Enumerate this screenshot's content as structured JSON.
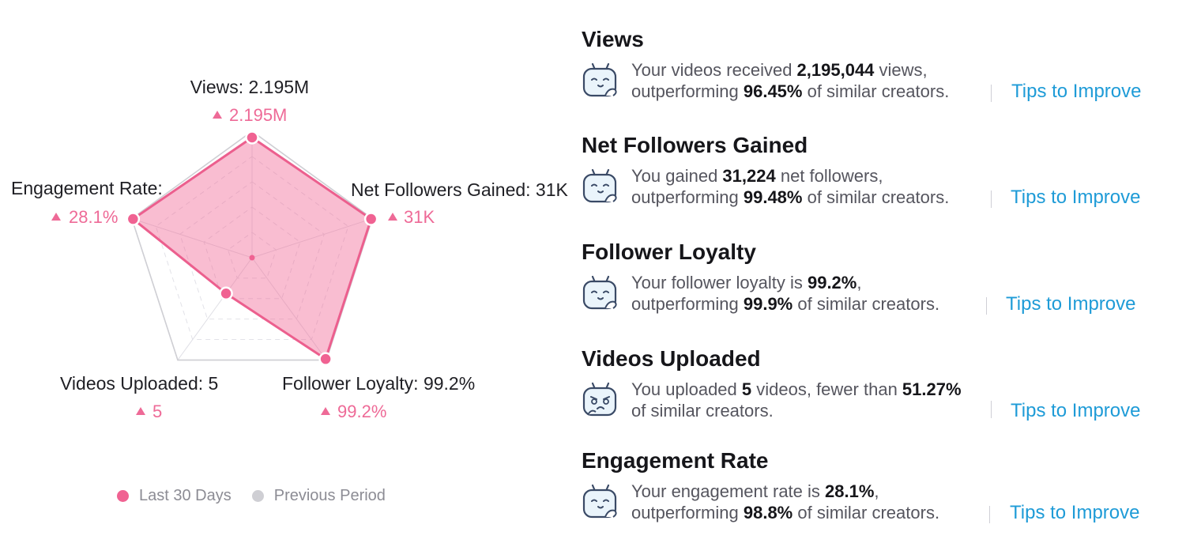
{
  "chart_data": {
    "type": "radar",
    "axes": [
      {
        "label": "Views: 2.195M",
        "delta": "2.195M",
        "value": 0.95
      },
      {
        "label": "Net Followers Gained: 31K",
        "delta": "31K",
        "value": 0.99
      },
      {
        "label": "Follower Loyalty: 99.2%",
        "delta": "99.2%",
        "value": 0.99
      },
      {
        "label": "Videos Uploaded: 5",
        "delta": "5",
        "value": 0.35
      },
      {
        "label": "Engagement Rate:",
        "delta": "28.1%",
        "value": 0.99
      }
    ],
    "series": [
      {
        "name": "Last 30 Days",
        "color": "#f06292"
      },
      {
        "name": "Previous Period",
        "color": "#cfcfd4"
      }
    ]
  },
  "legend": {
    "current": "Last 30 Days",
    "previous": "Previous Period"
  },
  "metrics": [
    {
      "title": "Views",
      "line1_pre": "Your videos received ",
      "line1_bold": "2,195,044",
      "line1_post": " views,",
      "line2_pre": "outperforming ",
      "line2_bold": "96.45%",
      "line2_post": " of similar creators.",
      "tips": "Tips to Improve"
    },
    {
      "title": "Net Followers Gained",
      "line1_pre": "You gained ",
      "line1_bold": "31,224",
      "line1_post": " net followers,",
      "line2_pre": "outperforming ",
      "line2_bold": "99.48%",
      "line2_post": " of similar creators.",
      "tips": "Tips to Improve"
    },
    {
      "title": "Follower Loyalty",
      "line1_pre": "Your follower loyalty is ",
      "line1_bold": "99.2%",
      "line1_post": ",",
      "line2_pre": "outperforming ",
      "line2_bold": "99.9%",
      "line2_post": " of similar creators.",
      "tips": "Tips to Improve"
    },
    {
      "title": "Videos Uploaded",
      "line1_pre": "You uploaded ",
      "line1_bold": "5",
      "line1_post": " videos, fewer than ",
      "line1_bold2": "51.27%",
      "line2_pre": "of similar creators.",
      "line2_bold": "",
      "line2_post": "",
      "tips": "Tips to Improve"
    },
    {
      "title": "Engagement Rate",
      "line1_pre": "Your engagement rate is ",
      "line1_bold": "28.1%",
      "line1_post": ",",
      "line2_pre": "outperforming ",
      "line2_bold": "98.8%",
      "line2_post": " of similar creators.",
      "tips": "Tips to Improve"
    }
  ],
  "icons": {
    "mascot_happy": "mascot-icon",
    "mascot_sad": "mascot-sad-icon",
    "delta": "triangle-up-icon"
  }
}
